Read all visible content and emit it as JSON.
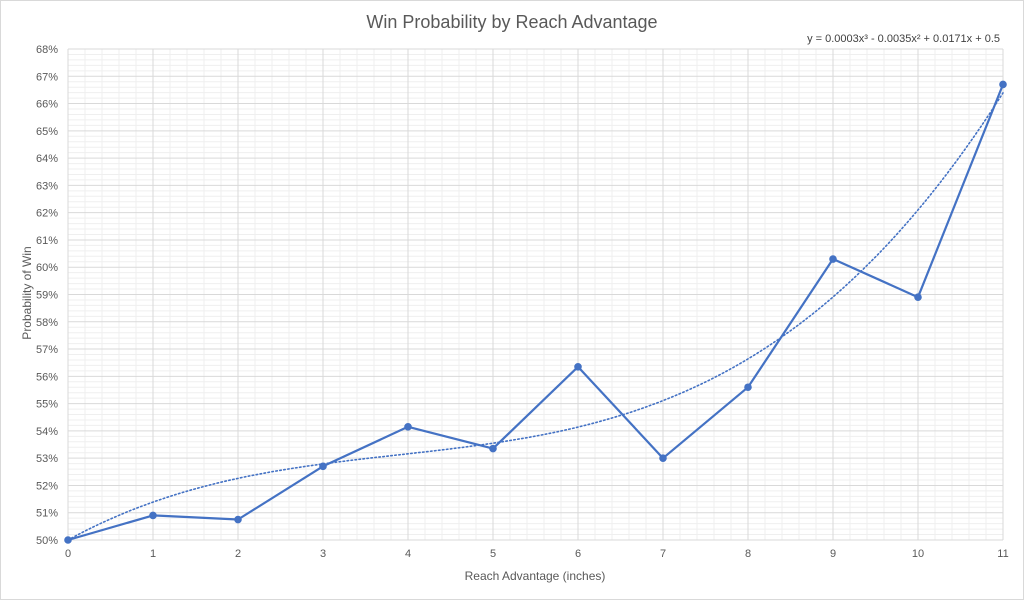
{
  "chart_data": {
    "type": "line",
    "title": "Win Probability by Reach Advantage",
    "xlabel": "Reach Advantage (inches)",
    "ylabel": "Probability of Win",
    "x": [
      0,
      1,
      2,
      3,
      4,
      5,
      6,
      7,
      8,
      9,
      10,
      11
    ],
    "x_ticks": [
      "0",
      "1",
      "2",
      "3",
      "4",
      "5",
      "6",
      "7",
      "8",
      "9",
      "10",
      "11"
    ],
    "xlim": [
      0,
      11
    ],
    "ylim": [
      0.5,
      0.68
    ],
    "y_ticks": [
      "50%",
      "51%",
      "52%",
      "53%",
      "54%",
      "55%",
      "56%",
      "57%",
      "58%",
      "59%",
      "60%",
      "61%",
      "62%",
      "63%",
      "64%",
      "65%",
      "66%",
      "67%",
      "68%"
    ],
    "series": [
      {
        "values": [
          0.5,
          0.509,
          0.5075,
          0.527,
          0.5415,
          0.5335,
          0.5635,
          0.53,
          0.556,
          0.603,
          0.589,
          0.667
        ],
        "color": "#4472C4",
        "markers": true
      }
    ],
    "trendline": {
      "type": "polynomial",
      "order": 3,
      "coefficients": [
        0.0003,
        -0.0035,
        0.0171,
        0.5
      ],
      "equation": "y = 0.0003x³ - 0.0035x² + 0.0171x + 0.5",
      "style": "dotted",
      "color": "#4472C4"
    },
    "grid": {
      "major": true,
      "minor": true,
      "major_color": "#d9d9d9",
      "minor_color": "#efefef"
    },
    "legend": "none"
  }
}
